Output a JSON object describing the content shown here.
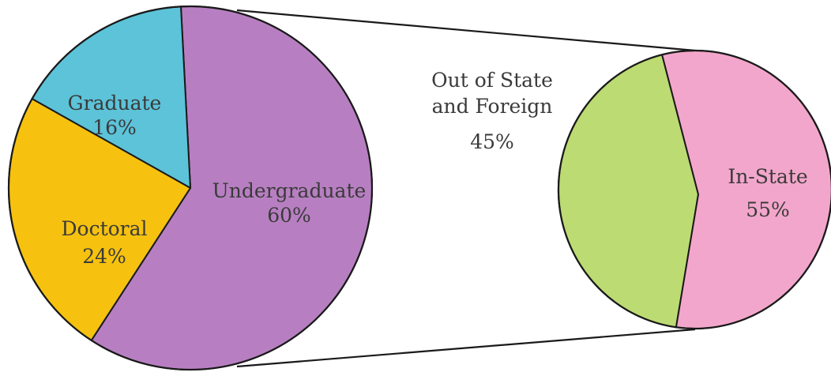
{
  "chart_data": [
    {
      "type": "pie",
      "title": "",
      "slices": [
        {
          "key": "undergraduate",
          "label": "Undergraduate",
          "value_label": "60%",
          "value": 60,
          "color": "#b77fc1"
        },
        {
          "key": "graduate",
          "label": "Graduate",
          "value_label": "16%",
          "value": 16,
          "color": "#5cc3d9"
        },
        {
          "key": "doctoral",
          "label": "Doctoral",
          "value_label": "24%",
          "value": 24,
          "color": "#f6c20f"
        }
      ],
      "exploded_slice": "undergraduate"
    },
    {
      "type": "pie",
      "title": "",
      "slices": [
        {
          "key": "in_state",
          "label": "In-State",
          "value_label": "55%",
          "value": 55,
          "color": "#f3a6cb"
        },
        {
          "key": "out_of_state",
          "label_lines": [
            "Out of State",
            "and Foreign"
          ],
          "value_label": "45%",
          "value": 45,
          "color": "#bcdb73"
        }
      ],
      "breakdown_of": "undergraduate"
    }
  ]
}
